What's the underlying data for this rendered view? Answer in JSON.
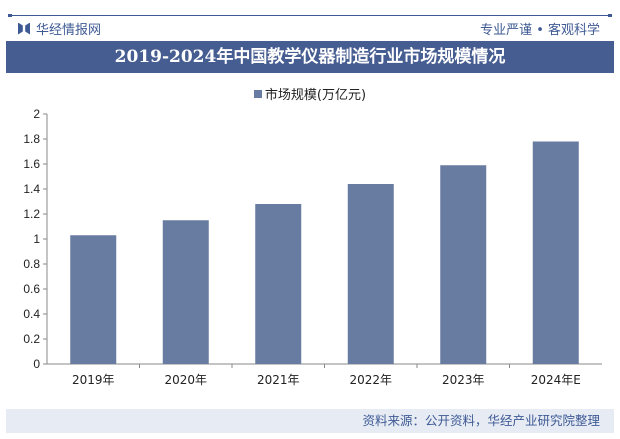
{
  "header": {
    "brand": "华经情报网",
    "slogan": "专业严谨 • 客观科学"
  },
  "chart_data": {
    "type": "bar",
    "title": "2019-2024年中国教学仪器制造行业市场规模情况",
    "categories": [
      "2019年",
      "2020年",
      "2021年",
      "2022年",
      "2023年",
      "2024年E"
    ],
    "series": [
      {
        "name": "市场规模(万亿元)",
        "values": [
          1.03,
          1.15,
          1.28,
          1.44,
          1.59,
          1.78
        ],
        "color": "#687ba0"
      }
    ],
    "yticks": [
      "0",
      "0.2",
      "0.4",
      "0.6",
      "0.8",
      "1",
      "1.2",
      "1.4",
      "1.6",
      "1.8",
      "2"
    ],
    "ylim": [
      0,
      2
    ],
    "grid": false,
    "legend": "top"
  },
  "footer": {
    "source": "资料来源：公开资料，华经产业研究院整理"
  }
}
